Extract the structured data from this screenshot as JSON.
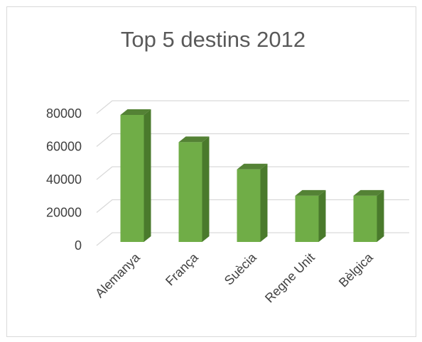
{
  "chart_data": {
    "type": "bar",
    "title": "Top 5 destins 2012",
    "categories": [
      "Alemanya",
      "França",
      "Suècia",
      "Regne Unit",
      "Bèlgica"
    ],
    "values": [
      77000,
      60500,
      44000,
      28000,
      28000
    ],
    "ylim": [
      0,
      80000
    ],
    "yticks": [
      "0",
      "20000",
      "40000",
      "60000",
      "80000"
    ],
    "tick_values": [
      0,
      20000,
      40000,
      60000,
      80000
    ],
    "grid": true,
    "legend": "none",
    "colors": {
      "bar_front": "#70ad47",
      "bar_side": "#4a7a2c",
      "bar_top": "#548235",
      "grid": "#d9d9d9",
      "frame": "#d9d9d9"
    }
  }
}
